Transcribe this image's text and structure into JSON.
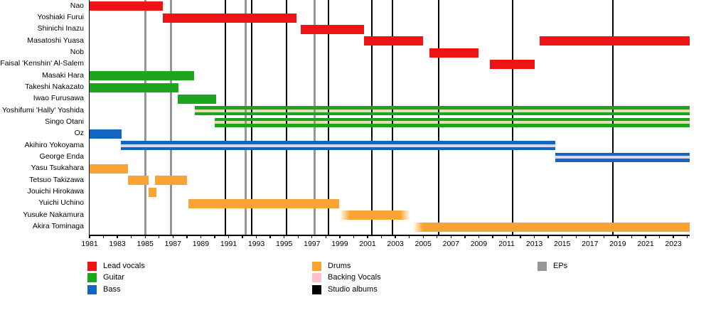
{
  "chart_data": {
    "type": "timeline",
    "title": "",
    "axis": {
      "start_year": 1981,
      "end_year": 2024.17,
      "year_labels": [
        1981,
        1983,
        1985,
        1987,
        1989,
        1991,
        1993,
        1995,
        1997,
        1999,
        2001,
        2003,
        2005,
        2007,
        2009,
        2011,
        2013,
        2015,
        2017,
        2019,
        2021,
        2023
      ]
    },
    "roles": {
      "lead_vocals": "#ee1414",
      "guitar": "#1ea51e",
      "bass": "#1565c0",
      "drums": "#f9a334",
      "backing_vocals": "#ffc0cb",
      "studio_albums": "#000000",
      "eps": "#969696"
    },
    "members": [
      {
        "name": "Nao",
        "segments": [
          {
            "role": "lead_vocals",
            "from": 1981.0,
            "till": 1986.27
          }
        ]
      },
      {
        "name": "Yoshiaki Furui",
        "segments": [
          {
            "role": "lead_vocals",
            "from": 1986.27,
            "till": 1995.89
          }
        ]
      },
      {
        "name": "Shinichi Inazu",
        "segments": [
          {
            "role": "lead_vocals",
            "from": 1996.19,
            "till": 2000.75
          }
        ]
      },
      {
        "name": "Masatoshi Yuasa",
        "segments": [
          {
            "role": "lead_vocals",
            "from": 2000.75,
            "till": 2004.99
          },
          {
            "role": "lead_vocals",
            "from": 2013.38,
            "till": 2024.17
          }
        ]
      },
      {
        "name": "Nob",
        "segments": [
          {
            "role": "lead_vocals",
            "from": 2005.45,
            "till": 2008.98
          }
        ]
      },
      {
        "name": "Faisal 'Kenshin' Al-Salem",
        "segments": [
          {
            "role": "lead_vocals",
            "from": 2009.8,
            "till": 2013.02
          }
        ]
      },
      {
        "name": "Masaki Hara",
        "segments": [
          {
            "role": "guitar",
            "from": 1981.0,
            "till": 1988.52
          }
        ]
      },
      {
        "name": "Takeshi Nakazato",
        "segments": [
          {
            "role": "guitar",
            "from": 1981.0,
            "till": 1987.39
          }
        ]
      },
      {
        "name": "Iwao Furusawa",
        "segments": [
          {
            "role": "guitar",
            "from": 1987.34,
            "till": 1990.11
          }
        ]
      },
      {
        "name": "Yoshifumi 'Hally' Yoshida",
        "segments": [
          {
            "role": "guitar",
            "from": 1988.57,
            "till": 2024.17,
            "stripe": "backing_vocals",
            "stripe_color": "#e8dcb0"
          }
        ]
      },
      {
        "name": "Singo Otani",
        "segments": [
          {
            "role": "guitar",
            "from": 1990.0,
            "till": 2024.17,
            "stripe": "backing_vocals",
            "stripe_color": "#e8dcb0"
          }
        ]
      },
      {
        "name": "Oz",
        "segments": [
          {
            "role": "bass",
            "from": 1981.0,
            "till": 1983.3
          }
        ]
      },
      {
        "name": "Akihiro Yokoyama",
        "segments": [
          {
            "role": "bass",
            "from": 1983.25,
            "till": 2014.5,
            "stripe": "backing_vocals",
            "stripe_color": "#d8d8f0",
            "stripe_over": true
          }
        ]
      },
      {
        "name": "George Enda",
        "segments": [
          {
            "role": "bass",
            "from": 2014.5,
            "till": 2024.17,
            "stripe": "backing_vocals",
            "stripe_color": "#dcd6f2",
            "stripe_over": true
          }
        ]
      },
      {
        "name": "Yasu Tsukahara",
        "segments": [
          {
            "role": "drums",
            "from": 1981.0,
            "till": 1983.76
          }
        ]
      },
      {
        "name": "Tetsuo Takizawa",
        "segments": [
          {
            "role": "drums",
            "from": 1983.76,
            "till": 1985.25
          },
          {
            "role": "drums",
            "from": 1985.71,
            "till": 1988.01
          }
        ]
      },
      {
        "name": "Jouichi Hirokawa",
        "segments": [
          {
            "role": "drums",
            "from": 1985.25,
            "till": 1985.81
          }
        ]
      },
      {
        "name": "Yuichi Uchino",
        "segments": [
          {
            "role": "drums",
            "from": 1988.11,
            "till": 1998.95
          }
        ]
      },
      {
        "name": "Yusuke Nakamura",
        "segments": [
          {
            "role": "drums",
            "from": 1999.0,
            "till": 2004.07,
            "fade_left": true,
            "fade_right": true
          }
        ]
      },
      {
        "name": "Akira Tominaga",
        "segments": [
          {
            "role": "drums",
            "from": 2004.27,
            "till": 2024.17,
            "fade_left": true
          }
        ]
      }
    ],
    "studio_album_years": [
      1990.77,
      1992.66,
      1995.17,
      1998.19,
      2001.31,
      2002.79,
      2006.12,
      2011.44,
      2018.65
    ],
    "ep_years": [
      1985.04,
      1986.88,
      1992.25,
      1997.21
    ]
  },
  "legend": {
    "columns": [
      [
        {
          "label": "Lead vocals",
          "color": "#ee1414"
        },
        {
          "label": "Guitar",
          "color": "#1ea51e"
        },
        {
          "label": "Bass",
          "color": "#1565c0"
        }
      ],
      [
        {
          "label": "Drums",
          "color": "#f9a334"
        },
        {
          "label": "Backing Vocals",
          "color": "#ffc0cb"
        },
        {
          "label": "Studio albums",
          "color": "#000000"
        }
      ],
      [
        {
          "label": "EPs",
          "color": "#969696"
        }
      ]
    ]
  }
}
